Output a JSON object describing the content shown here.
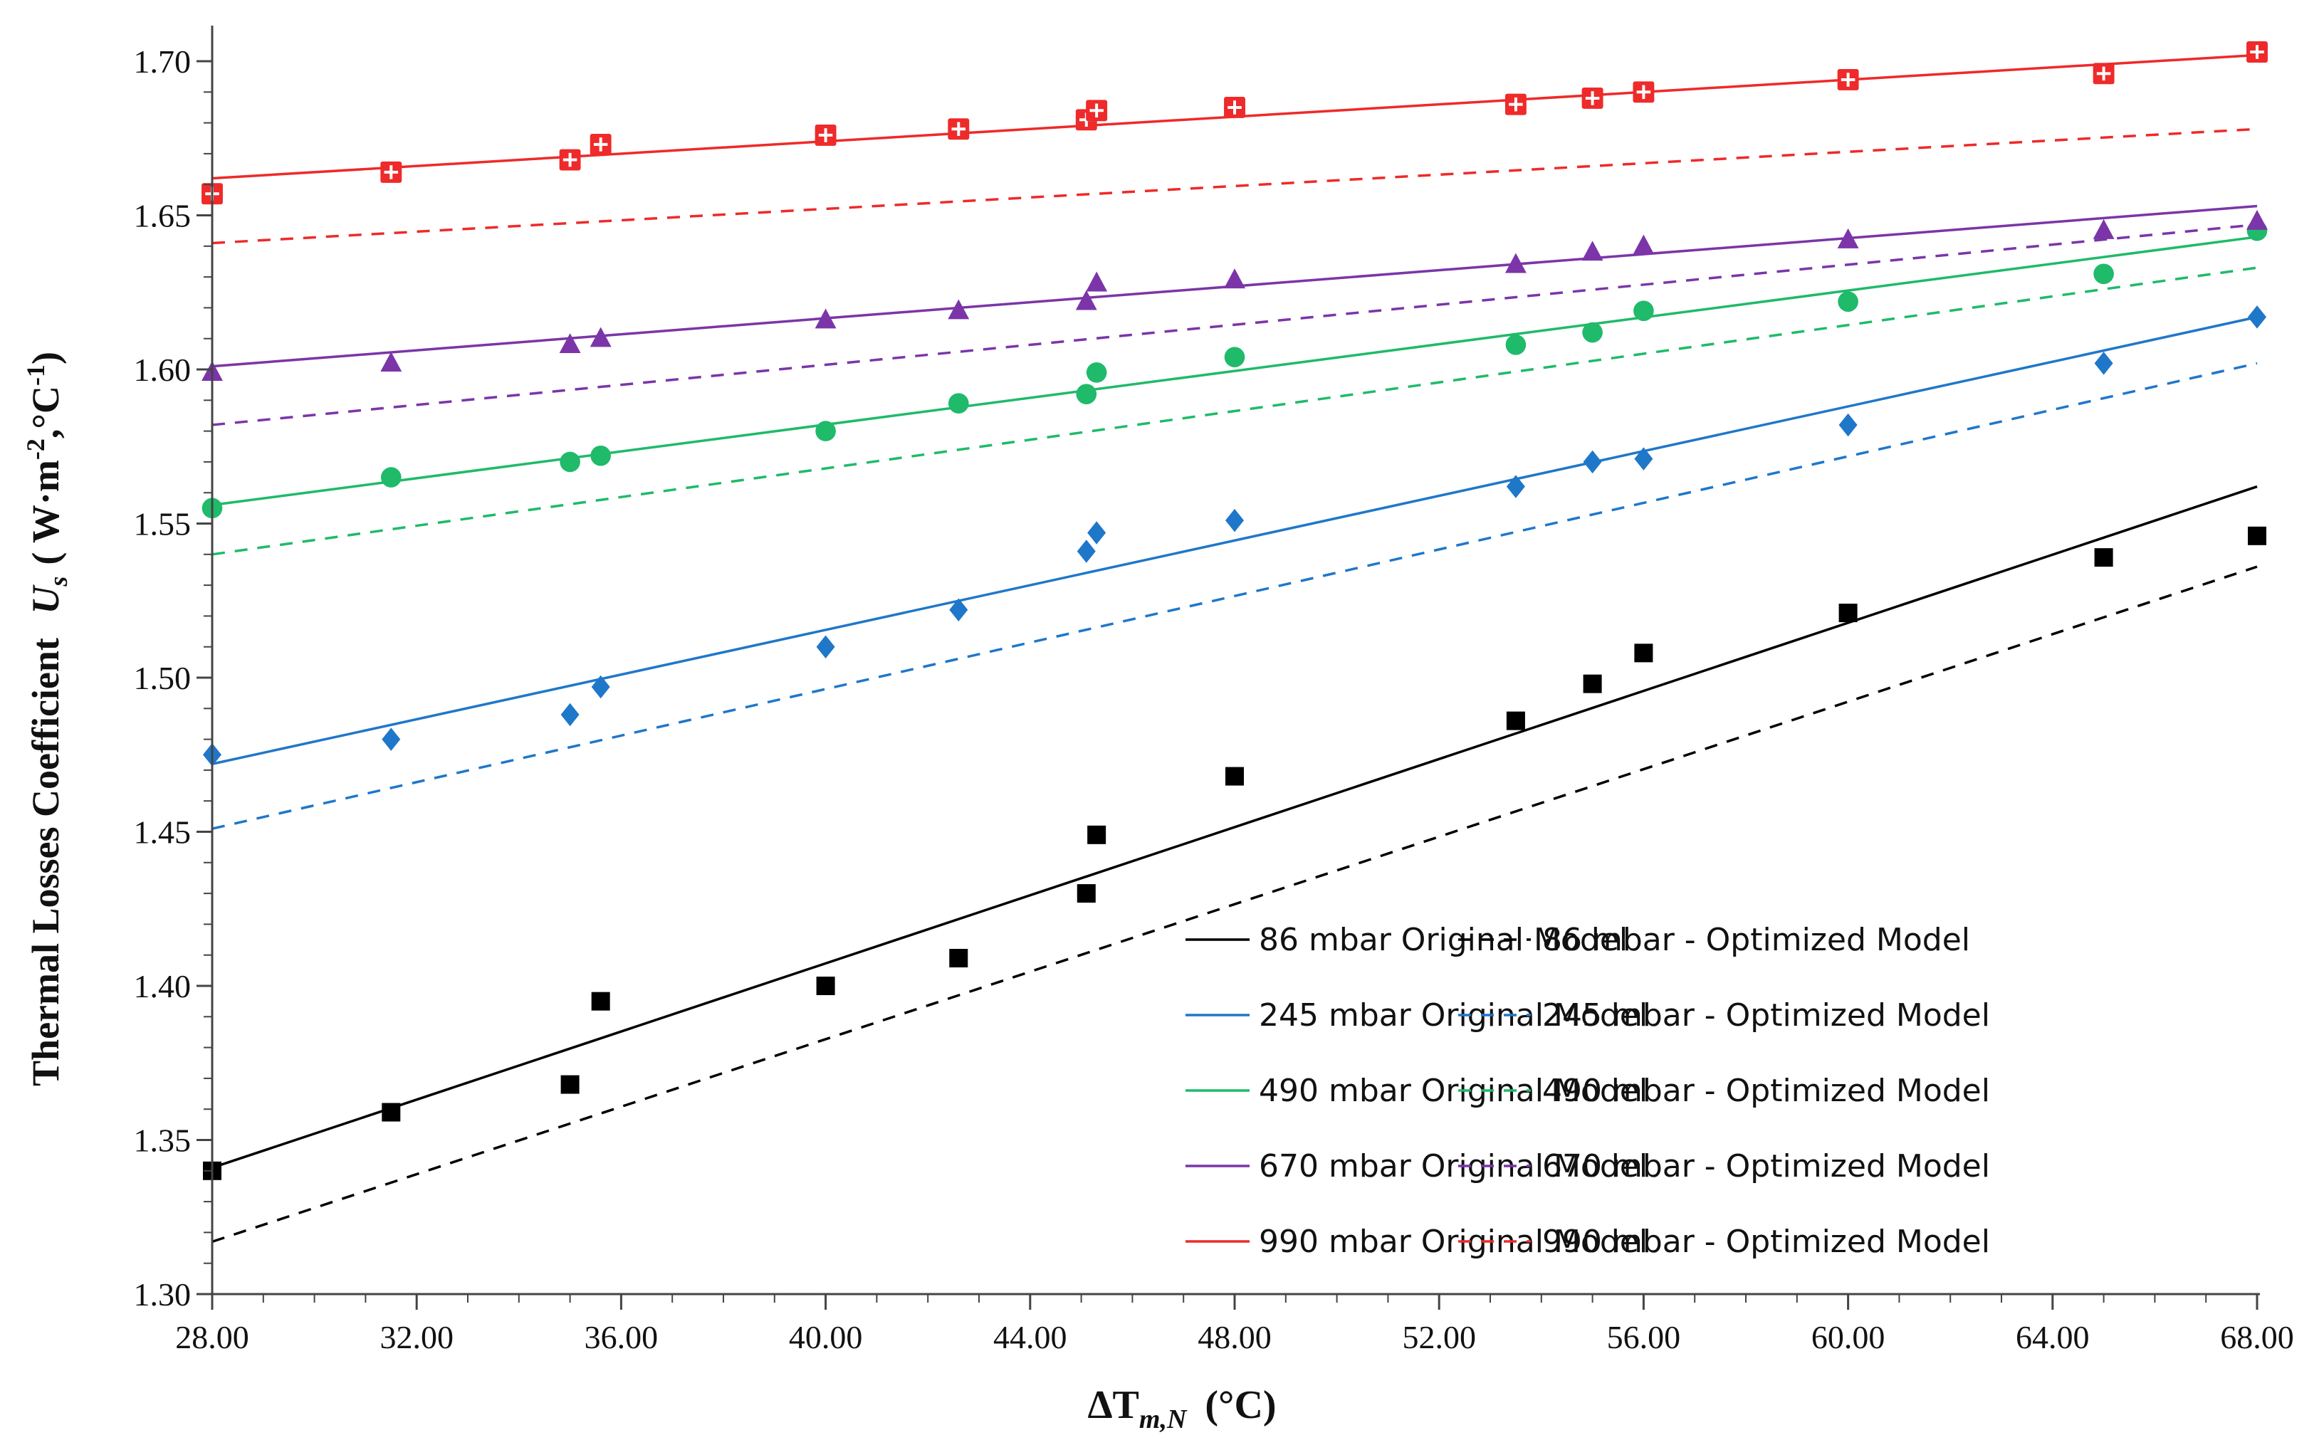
{
  "chart_data": {
    "type": "scatter",
    "title": "",
    "xlabel": {
      "main": "ΔT",
      "sub": "m,N",
      "unit": "(°C)"
    },
    "ylabel": {
      "prefix": "Thermal  Losses  Coefficient",
      "symbol": "U",
      "sub": "s",
      "unit_open": "( W·m",
      "exp1": "-2",
      "unit_mid": ",°C",
      "exp2": "-1",
      "unit_close": ")"
    },
    "xlim": [
      28,
      68
    ],
    "ylim": [
      1.3,
      1.7
    ],
    "x_ticks": [
      "28.00",
      "32.00",
      "36.00",
      "40.00",
      "44.00",
      "48.00",
      "52.00",
      "56.00",
      "60.00",
      "64.00",
      "68.00"
    ],
    "y_ticks": [
      "1.30",
      "1.35",
      "1.40",
      "1.45",
      "1.50",
      "1.55",
      "1.60",
      "1.65",
      "1.70"
    ],
    "x_tick_values": [
      28,
      32,
      36,
      40,
      44,
      48,
      52,
      56,
      60,
      64,
      68
    ],
    "y_tick_values": [
      1.3,
      1.35,
      1.4,
      1.45,
      1.5,
      1.55,
      1.6,
      1.65,
      1.7
    ],
    "grid": false,
    "legend_position": "bottom-right",
    "series": [
      {
        "pressure": "86 mbar",
        "color": "#000000",
        "marker": "square",
        "points": [
          [
            28.0,
            1.34
          ],
          [
            31.5,
            1.359
          ],
          [
            35.0,
            1.368
          ],
          [
            35.6,
            1.395
          ],
          [
            40.0,
            1.4
          ],
          [
            42.6,
            1.409
          ],
          [
            45.1,
            1.43
          ],
          [
            45.3,
            1.449
          ],
          [
            48.0,
            1.468
          ],
          [
            53.5,
            1.486
          ],
          [
            55.0,
            1.498
          ],
          [
            56.0,
            1.508
          ],
          [
            60.0,
            1.521
          ],
          [
            65.0,
            1.539
          ],
          [
            68.0,
            1.546
          ]
        ],
        "original_line": [
          [
            28,
            1.341
          ],
          [
            68,
            1.562
          ]
        ],
        "optimized_line": [
          [
            28,
            1.317
          ],
          [
            68,
            1.536
          ]
        ],
        "original_label": "86 mbar Original Model",
        "optimized_label": "86 mbar - Optimized Model"
      },
      {
        "pressure": "245 mbar",
        "color": "#1f77c9",
        "marker": "diamond",
        "points": [
          [
            28.0,
            1.475
          ],
          [
            31.5,
            1.48
          ],
          [
            35.0,
            1.488
          ],
          [
            35.6,
            1.497
          ],
          [
            40.0,
            1.51
          ],
          [
            42.6,
            1.522
          ],
          [
            45.1,
            1.541
          ],
          [
            45.3,
            1.547
          ],
          [
            48.0,
            1.551
          ],
          [
            53.5,
            1.562
          ],
          [
            55.0,
            1.57
          ],
          [
            56.0,
            1.571
          ],
          [
            60.0,
            1.582
          ],
          [
            65.0,
            1.602
          ],
          [
            68.0,
            1.617
          ]
        ],
        "original_line": [
          [
            28,
            1.472
          ],
          [
            68,
            1.617
          ]
        ],
        "optimized_line": [
          [
            28,
            1.451
          ],
          [
            68,
            1.602
          ]
        ],
        "original_label": "245 mbar Original Model",
        "optimized_label": "245 mbar - Optimized Model"
      },
      {
        "pressure": "490 mbar",
        "color": "#1fba6a",
        "marker": "circle",
        "points": [
          [
            28.0,
            1.555
          ],
          [
            31.5,
            1.565
          ],
          [
            35.0,
            1.57
          ],
          [
            35.6,
            1.572
          ],
          [
            40.0,
            1.58
          ],
          [
            42.6,
            1.589
          ],
          [
            45.1,
            1.592
          ],
          [
            45.3,
            1.599
          ],
          [
            48.0,
            1.604
          ],
          [
            53.5,
            1.608
          ],
          [
            55.0,
            1.612
          ],
          [
            56.0,
            1.619
          ],
          [
            60.0,
            1.622
          ],
          [
            65.0,
            1.631
          ],
          [
            68.0,
            1.645
          ]
        ],
        "original_line": [
          [
            28,
            1.556
          ],
          [
            68,
            1.643
          ]
        ],
        "optimized_line": [
          [
            28,
            1.54
          ],
          [
            68,
            1.633
          ]
        ],
        "original_label": "490 mbar Original Model",
        "optimized_label": "490 mbar - Optimized Model"
      },
      {
        "pressure": "670 mbar",
        "color": "#7b35a8",
        "marker": "triangle",
        "points": [
          [
            28.0,
            1.599
          ],
          [
            31.5,
            1.602
          ],
          [
            35.0,
            1.608
          ],
          [
            35.6,
            1.61
          ],
          [
            40.0,
            1.616
          ],
          [
            42.6,
            1.619
          ],
          [
            45.1,
            1.622
          ],
          [
            45.3,
            1.628
          ],
          [
            48.0,
            1.629
          ],
          [
            53.5,
            1.634
          ],
          [
            55.0,
            1.638
          ],
          [
            56.0,
            1.64
          ],
          [
            60.0,
            1.642
          ],
          [
            65.0,
            1.645
          ],
          [
            68.0,
            1.648
          ]
        ],
        "original_line": [
          [
            28,
            1.601
          ],
          [
            68,
            1.653
          ]
        ],
        "optimized_line": [
          [
            28,
            1.582
          ],
          [
            68,
            1.647
          ]
        ],
        "original_label": "670 mbar Original Model",
        "optimized_label": "670 mbar - Optimized Model"
      },
      {
        "pressure": "990 mbar",
        "color": "#ee2a2a",
        "marker": "square-cross",
        "points": [
          [
            28.0,
            1.657
          ],
          [
            31.5,
            1.664
          ],
          [
            35.0,
            1.668
          ],
          [
            35.6,
            1.673
          ],
          [
            40.0,
            1.676
          ],
          [
            42.6,
            1.678
          ],
          [
            45.1,
            1.681
          ],
          [
            45.3,
            1.684
          ],
          [
            48.0,
            1.685
          ],
          [
            53.5,
            1.686
          ],
          [
            55.0,
            1.688
          ],
          [
            56.0,
            1.69
          ],
          [
            60.0,
            1.694
          ],
          [
            65.0,
            1.696
          ],
          [
            68.0,
            1.703
          ]
        ],
        "original_line": [
          [
            28,
            1.662
          ],
          [
            68,
            1.702
          ]
        ],
        "optimized_line": [
          [
            28,
            1.641
          ],
          [
            68,
            1.678
          ]
        ],
        "original_label": "990 mbar Original Model",
        "optimized_label": "990 mbar - Optimized Model"
      }
    ]
  }
}
